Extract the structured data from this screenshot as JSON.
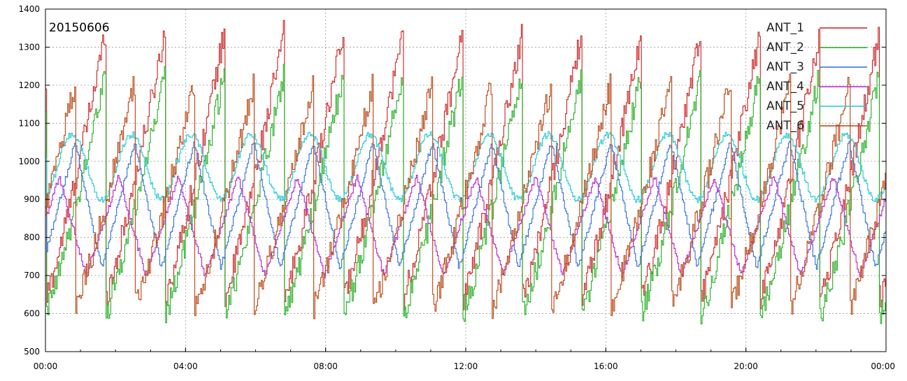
{
  "chart_data": {
    "type": "line",
    "title": "20150606",
    "xlabel": "",
    "ylabel": "",
    "x_ticks": [
      "00:00",
      "04:00",
      "08:00",
      "12:00",
      "16:00",
      "20:00",
      "00:00"
    ],
    "x_range_hours": [
      0,
      24
    ],
    "y_ticks": [
      500,
      600,
      700,
      800,
      900,
      1000,
      1100,
      1200,
      1300,
      1400
    ],
    "ylim": [
      500,
      1400
    ],
    "grid": true,
    "legend_position": "top-right",
    "series": [
      {
        "name": "ANT_1",
        "color": "#cc1f1f",
        "shape": "sawtooth",
        "period_h": 1.7,
        "phase_h": 0.0,
        "min": 640,
        "max": 1340,
        "start": 1190
      },
      {
        "name": "ANT_2",
        "color": "#1fae1f",
        "shape": "sawtooth",
        "period_h": 1.7,
        "phase_h": 0.0,
        "min": 595,
        "max": 1230,
        "start": 1130
      },
      {
        "name": "ANT_3",
        "color": "#2f6fd6",
        "shape": "triangle",
        "period_h": 1.7,
        "phase_h": 0.1,
        "min": 720,
        "max": 1050,
        "start": 900
      },
      {
        "name": "ANT_4",
        "color": "#b41fd0",
        "shape": "triangle",
        "period_h": 1.7,
        "phase_h": 0.55,
        "min": 700,
        "max": 960,
        "start": 880
      },
      {
        "name": "ANT_5",
        "color": "#1fc8d8",
        "shape": "smooth",
        "period_h": 1.7,
        "phase_h": 0.1,
        "min": 900,
        "max": 1070,
        "start": 1010
      },
      {
        "name": "ANT_6",
        "color": "#b8420f",
        "shape": "sawtooth",
        "period_h": 1.7,
        "phase_h": 0.85,
        "min": 620,
        "max": 1210,
        "start": 860
      }
    ]
  }
}
